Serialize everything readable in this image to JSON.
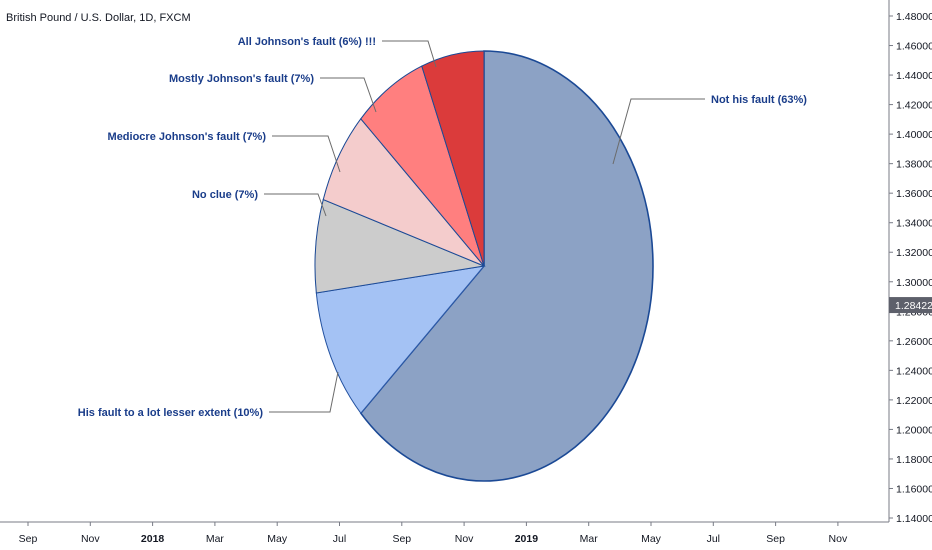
{
  "chart_title": "British Pound / U.S. Dollar, 1D, FXCM",
  "price_axis": {
    "ticks": [
      "1.48000",
      "1.46000",
      "1.44000",
      "1.42000",
      "1.40000",
      "1.38000",
      "1.36000",
      "1.34000",
      "1.32000",
      "1.30000",
      "1.28000",
      "1.26000",
      "1.24000",
      "1.22000",
      "1.20000",
      "1.18000",
      "1.16000",
      "1.14000"
    ],
    "current_price": "1.28422",
    "current_price_value": 1.28422,
    "current_price_color": "#5d606b"
  },
  "time_axis": {
    "ticks": [
      {
        "label": "Sep",
        "bold": false
      },
      {
        "label": "Nov",
        "bold": false
      },
      {
        "label": "2018",
        "bold": true
      },
      {
        "label": "Mar",
        "bold": false
      },
      {
        "label": "May",
        "bold": false
      },
      {
        "label": "Jul",
        "bold": false
      },
      {
        "label": "Sep",
        "bold": false
      },
      {
        "label": "Nov",
        "bold": false
      },
      {
        "label": "2019",
        "bold": true
      },
      {
        "label": "Mar",
        "bold": false
      },
      {
        "label": "May",
        "bold": false
      },
      {
        "label": "Jul",
        "bold": false
      },
      {
        "label": "Sep",
        "bold": false
      },
      {
        "label": "Nov",
        "bold": false
      }
    ]
  },
  "chart_data": {
    "type": "pie",
    "slices": [
      {
        "label": "Not his fault (63%)",
        "value": 63,
        "color": "#8ca2c5",
        "edge": "#1c4a96"
      },
      {
        "label": "His fault to a lot lesser extent (10%)",
        "value": 10,
        "color": "#a4c2f4",
        "edge": "#2d5aa8"
      },
      {
        "label": "No clue (7%)",
        "value": 7,
        "color": "#cccccc",
        "edge": "#1c4a96"
      },
      {
        "label": "Mediocre Johnson's fault (7%)",
        "value": 7,
        "color": "#f4cccc",
        "edge": "#1c4a96"
      },
      {
        "label": "Mostly Johnson's fault (7%)",
        "value": 7,
        "color": "#ff7f7f",
        "edge": "#1c4a96"
      },
      {
        "label": "All Johnson's fault (6%) !!!",
        "value": 6,
        "color": "#db3b3b",
        "edge": "#1c4a96"
      }
    ],
    "label_color": "#1a3d8a",
    "leader_color": "#6b6b6b"
  }
}
